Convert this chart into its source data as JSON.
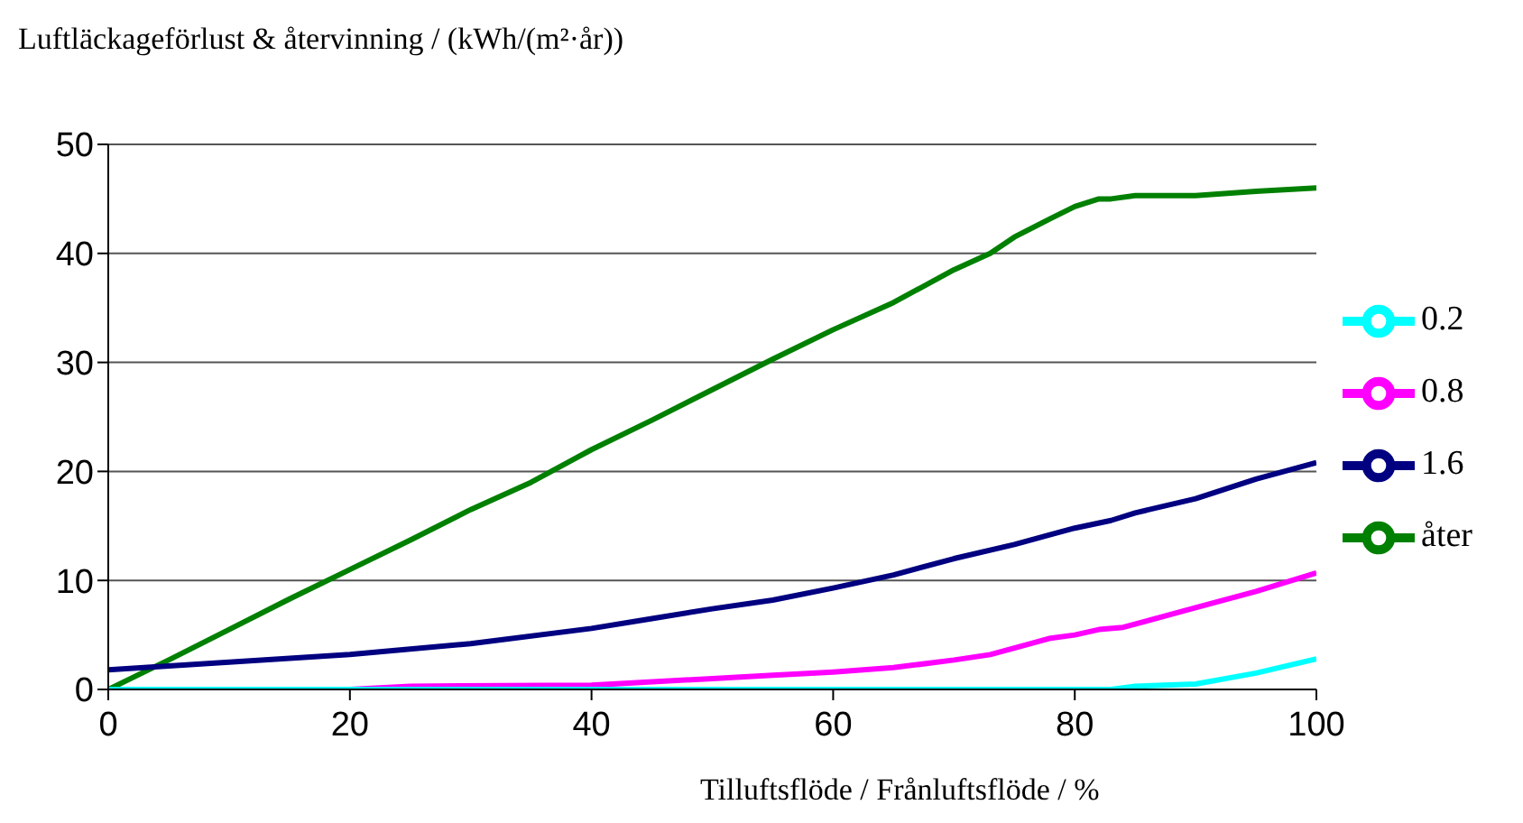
{
  "chart_data": {
    "type": "line",
    "ylabel": "Luftläckageförlust & återvinning / (kWh/(m²·år))",
    "xlabel": "Tilluftsflöde / Frånluftsflöde / %",
    "xlim": [
      0,
      100
    ],
    "xticks": [
      0,
      20,
      40,
      60,
      80,
      100
    ],
    "ylim": [
      0,
      50
    ],
    "yticks": [
      0,
      10,
      20,
      30,
      40,
      50
    ],
    "grid": "y",
    "legend": "right",
    "marker": "none",
    "line_style": "solid",
    "series": [
      {
        "name": "åter",
        "color": "#008000",
        "x": [
          0,
          5,
          10,
          15,
          20,
          25,
          30,
          35,
          40,
          45,
          50,
          55,
          60,
          65,
          70,
          73,
          75,
          78,
          80,
          82,
          83,
          85,
          90,
          95,
          100
        ],
        "values": [
          0,
          2.7,
          5.5,
          8.3,
          11,
          13.7,
          16.5,
          19,
          22,
          24.7,
          27.5,
          30.3,
          33,
          35.5,
          38.5,
          40,
          41.5,
          43.2,
          44.3,
          45,
          45,
          45.3,
          45.3,
          45.7,
          46
        ]
      },
      {
        "name": "1.6",
        "color": "#000080",
        "x": [
          0,
          10,
          20,
          30,
          40,
          45,
          50,
          55,
          60,
          65,
          70,
          75,
          78,
          80,
          83,
          85,
          90,
          95,
          100
        ],
        "values": [
          1.8,
          2.5,
          3.2,
          4.2,
          5.6,
          6.5,
          7.4,
          8.2,
          9.3,
          10.5,
          12,
          13.3,
          14.2,
          14.8,
          15.5,
          16.2,
          17.5,
          19.3,
          20.8
        ]
      },
      {
        "name": "0.8",
        "color": "#ff00ff",
        "x": [
          0,
          20,
          25,
          40,
          50,
          55,
          60,
          65,
          70,
          73,
          75,
          78,
          80,
          82,
          84,
          90,
          95,
          100
        ],
        "values": [
          0,
          0,
          0.3,
          0.4,
          1,
          1.3,
          1.6,
          2,
          2.7,
          3.2,
          3.8,
          4.7,
          5,
          5.5,
          5.7,
          7.5,
          9,
          10.7
        ]
      },
      {
        "name": "0.2",
        "color": "#00ffff",
        "x": [
          0,
          83,
          85,
          90,
          95,
          100
        ],
        "values": [
          0,
          0,
          0.3,
          0.5,
          1.5,
          2.8
        ]
      }
    ]
  }
}
